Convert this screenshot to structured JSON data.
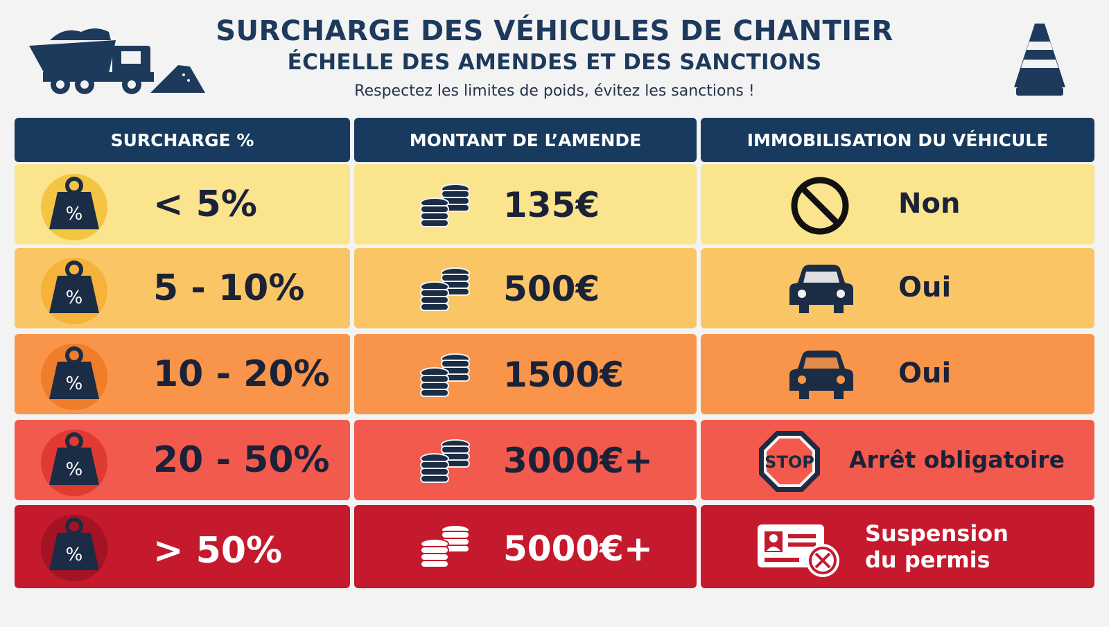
{
  "header": {
    "title": "SURCHARGE DES VÉHICULES DE CHANTIER",
    "subtitle": "ÉCHELLE DES AMENDES ET DES SANCTIONS",
    "tagline": "Respectez les limites de poids, évitez les sanctions !"
  },
  "icons": {
    "truck": "dump-truck-icon",
    "cone": "traffic-cone-icon",
    "weight": "percent-weight-icon",
    "coins": "coin-stack-icon",
    "no": "prohibited-icon",
    "car": "car-icon",
    "stop": "stop-sign-icon",
    "license": "license-suspended-icon"
  },
  "columns": {
    "surcharge": "SURCHARGE %",
    "amende": "MONTANT DE L’AMENDE",
    "immobilisation": "IMMOBILISATION DU VÉHICULE"
  },
  "weight_symbol": "%",
  "stop_label": "STOP",
  "rows": [
    {
      "surcharge": "< 5%",
      "amende": "135€",
      "immobilisation": "Non",
      "icon": "prohibited-icon",
      "bg": "#fae48e",
      "circle": "#f4c542",
      "text_color": "#1b2238"
    },
    {
      "surcharge": "5 - 10%",
      "amende": "500€",
      "immobilisation": "Oui",
      "icon": "car-icon",
      "bg": "#fac665",
      "circle": "#f6b23a",
      "text_color": "#1b2238"
    },
    {
      "surcharge": "10 - 20%",
      "amende": "1500€",
      "immobilisation": "Oui",
      "icon": "car-icon",
      "bg": "#f8954a",
      "circle": "#ef7d2a",
      "text_color": "#1b2238"
    },
    {
      "surcharge": "20 - 50%",
      "amende": "3000€+",
      "immobilisation": "Arrêt obligatoire",
      "icon": "stop-sign-icon",
      "bg": "#f25a4e",
      "circle": "#e03a33",
      "text_color": "#1b2238"
    },
    {
      "surcharge": "> 50%",
      "amende": "5000€+",
      "immobilisation_l1": "Suspension",
      "immobilisation_l2": "du permis",
      "icon": "license-suspended-icon",
      "bg": "#c5192d",
      "circle": "#a31324",
      "text_color": "#ffffff"
    }
  ],
  "colors": {
    "navy": "#173a5e",
    "background": "#f3f3f3"
  }
}
